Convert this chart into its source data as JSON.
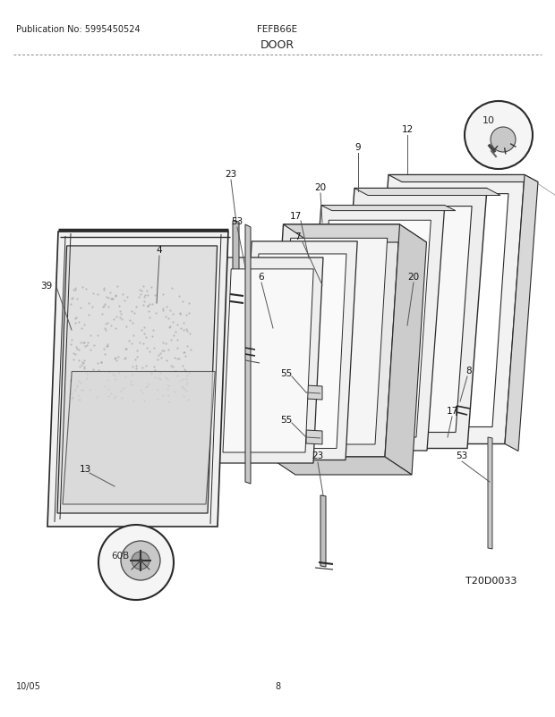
{
  "title_left": "Publication No: 5995450524",
  "title_center": "FEFB66E",
  "title_section": "DOOR",
  "footer_left": "10/05",
  "footer_center": "8",
  "diagram_id": "T20D0033",
  "bg_color": "#ffffff",
  "line_color": "#2a2a2a"
}
